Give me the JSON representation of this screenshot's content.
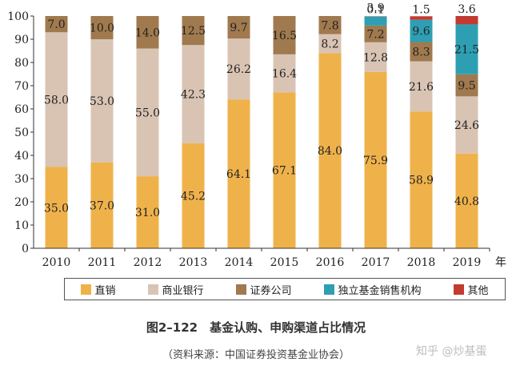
{
  "chart_data": {
    "type": "bar",
    "stacked": true,
    "categories": [
      "2010",
      "2011",
      "2012",
      "2013",
      "2014",
      "2015",
      "2016",
      "2017",
      "2018",
      "2019"
    ],
    "series": [
      {
        "name": "直销",
        "color": "#efb24a",
        "values": [
          35.0,
          37.0,
          31.0,
          45.2,
          64.1,
          67.1,
          84.0,
          75.9,
          58.9,
          40.8
        ]
      },
      {
        "name": "商业银行",
        "color": "#d9c4b4",
        "values": [
          58.0,
          53.0,
          55.0,
          42.3,
          26.2,
          16.4,
          8.2,
          12.8,
          21.6,
          24.6
        ]
      },
      {
        "name": "证券公司",
        "color": "#a07a4e",
        "values": [
          7.0,
          10.0,
          14.0,
          12.5,
          9.7,
          16.5,
          7.8,
          7.2,
          8.3,
          9.5
        ]
      },
      {
        "name": "独立基金销售机构",
        "color": "#2e9fb3",
        "values": [
          null,
          null,
          null,
          null,
          null,
          null,
          null,
          3.9,
          9.6,
          21.5
        ]
      },
      {
        "name": "其他",
        "color": "#c23a30",
        "values": [
          null,
          null,
          null,
          null,
          null,
          null,
          null,
          0.1,
          1.5,
          3.6
        ]
      }
    ],
    "labels": [
      [
        "35.0",
        "58.0",
        "7.0",
        "",
        ""
      ],
      [
        "37.0",
        "53.0",
        "10.0",
        "",
        ""
      ],
      [
        "31.0",
        "55.0",
        "14.0",
        "",
        ""
      ],
      [
        "45.2",
        "42.3",
        "12.5",
        "",
        ""
      ],
      [
        "64.1",
        "26.2",
        "9.7",
        "",
        ""
      ],
      [
        "67.1",
        "16.4",
        "16.5",
        "",
        ""
      ],
      [
        "84.0",
        "8.2",
        "7.8",
        "",
        ""
      ],
      [
        "75.9",
        "12.8",
        "7.2",
        "3.9",
        "0.1"
      ],
      [
        "58.9",
        "21.6",
        "8.3",
        "9.6",
        "1.5"
      ],
      [
        "40.8",
        "24.6",
        "9.5",
        "21.5",
        "3.6"
      ]
    ],
    "ylim": [
      0,
      100
    ],
    "yticks": [
      "0",
      "10",
      "20",
      "30",
      "40",
      "50",
      "60",
      "70",
      "80",
      "90",
      "100"
    ],
    "xunit": "年",
    "legend_position": "bottom"
  },
  "caption": "图2–122　基金认购、申购渠道占比情况",
  "source": "（资料来源：中国证券投资基金业协会）",
  "watermark": "知乎 @炒基蛋"
}
